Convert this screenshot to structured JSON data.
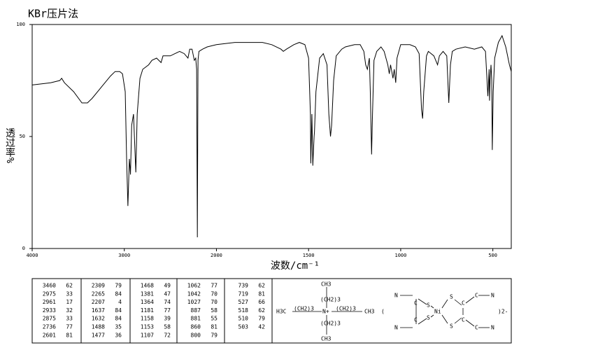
{
  "title": "KBr压片法",
  "chart_data": {
    "type": "line",
    "x_label": "波数/cm⁻¹",
    "y_label": "透过率%",
    "xlim": [
      4000,
      400
    ],
    "xticks": [
      4000,
      3000,
      2000,
      1500,
      1000,
      500
    ],
    "ylim": [
      0,
      100
    ],
    "yticks": [
      0,
      50,
      100
    ],
    "color": "#000000",
    "x": [
      4000,
      3800,
      3700,
      3680,
      3650,
      3550,
      3460,
      3400,
      3350,
      3250,
      3150,
      3100,
      3050,
      3020,
      2990,
      2975,
      2961,
      2945,
      2933,
      2920,
      2900,
      2875,
      2860,
      2830,
      2800,
      2736,
      2700,
      2650,
      2601,
      2580,
      2500,
      2450,
      2400,
      2350,
      2309,
      2290,
      2265,
      2240,
      2225,
      2215,
      2207,
      2200,
      2190,
      2150,
      2100,
      2000,
      1900,
      1800,
      1750,
      1700,
      1650,
      1637,
      1620,
      1580,
      1550,
      1520,
      1500,
      1490,
      1488,
      1482,
      1477,
      1470,
      1468,
      1460,
      1440,
      1420,
      1400,
      1390,
      1381,
      1375,
      1364,
      1350,
      1320,
      1300,
      1250,
      1220,
      1200,
      1190,
      1181,
      1170,
      1165,
      1158,
      1153,
      1145,
      1130,
      1107,
      1090,
      1070,
      1062,
      1055,
      1042,
      1035,
      1027,
      1020,
      1000,
      950,
      920,
      900,
      887,
      881,
      875,
      860,
      850,
      820,
      800,
      790,
      770,
      750,
      739,
      730,
      720,
      700,
      650,
      600,
      560,
      540,
      527,
      520,
      518,
      515,
      510,
      506,
      503,
      498,
      490,
      470,
      450,
      430,
      410,
      400
    ],
    "y": [
      73,
      74,
      75,
      76,
      74,
      70,
      65,
      65,
      67,
      72,
      77,
      79,
      79,
      78,
      70,
      40,
      19,
      40,
      33,
      55,
      60,
      34,
      60,
      76,
      80,
      82,
      84,
      85,
      83,
      86,
      86,
      87,
      88,
      87,
      85,
      89,
      89,
      84,
      85,
      80,
      5,
      84,
      88,
      89,
      90,
      91,
      92,
      92,
      92,
      91,
      89,
      88,
      89,
      91,
      92,
      91,
      85,
      60,
      38,
      60,
      37,
      50,
      52,
      70,
      85,
      87,
      82,
      60,
      50,
      55,
      75,
      86,
      89,
      90,
      91,
      91,
      88,
      82,
      80,
      85,
      70,
      42,
      60,
      84,
      88,
      90,
      88,
      82,
      78,
      82,
      76,
      80,
      74,
      85,
      91,
      91,
      90,
      87,
      62,
      58,
      70,
      86,
      88,
      86,
      82,
      86,
      88,
      86,
      65,
      82,
      88,
      89,
      90,
      89,
      90,
      88,
      68,
      80,
      66,
      75,
      82,
      75,
      44,
      70,
      85,
      92,
      95,
      90,
      82,
      79
    ]
  },
  "peak_table": [
    [
      [
        "3460",
        "62"
      ],
      [
        "2975",
        "33"
      ],
      [
        "2961",
        "17"
      ],
      [
        "2933",
        "32"
      ],
      [
        "2875",
        "33"
      ],
      [
        "2736",
        "77"
      ],
      [
        "2601",
        "81"
      ]
    ],
    [
      [
        "2309",
        "79"
      ],
      [
        "2265",
        "84"
      ],
      [
        "2207",
        "4"
      ],
      [
        "1637",
        "84"
      ],
      [
        "1632",
        "84"
      ],
      [
        "1488",
        "35"
      ],
      [
        "1477",
        "36"
      ]
    ],
    [
      [
        "1468",
        "49"
      ],
      [
        "1381",
        "47"
      ],
      [
        "1364",
        "74"
      ],
      [
        "1181",
        "77"
      ],
      [
        "1158",
        "39"
      ],
      [
        "1153",
        "58"
      ],
      [
        "1107",
        "72"
      ]
    ],
    [
      [
        "1062",
        "77"
      ],
      [
        "1042",
        "70"
      ],
      [
        "1027",
        "70"
      ],
      [
        "887",
        "58"
      ],
      [
        "881",
        "55"
      ],
      [
        "860",
        "81"
      ],
      [
        "800",
        "79"
      ]
    ],
    [
      [
        "739",
        "62"
      ],
      [
        "719",
        "81"
      ],
      [
        "527",
        "66"
      ],
      [
        "518",
        "62"
      ],
      [
        "510",
        "79"
      ],
      [
        "503",
        "42"
      ]
    ]
  ],
  "structure_labels": [
    "CH3",
    "(CH2)3",
    "H3C",
    "N+",
    "CH3",
    "N",
    "C",
    "S",
    "Ni",
    "(",
    ")2-"
  ]
}
